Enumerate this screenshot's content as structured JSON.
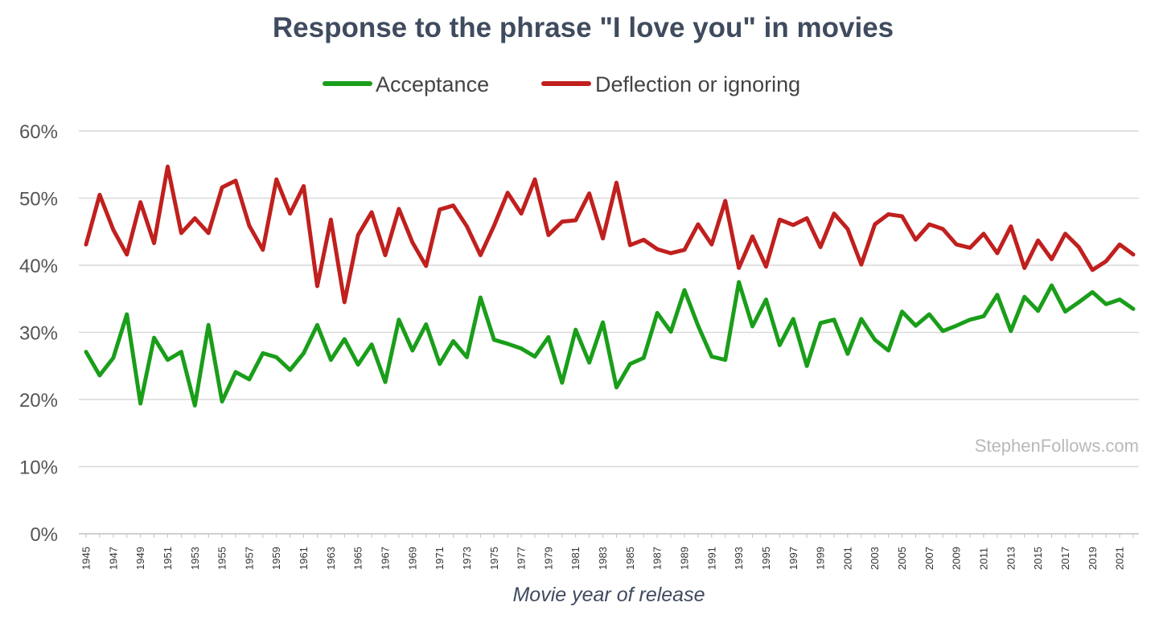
{
  "chart_data": {
    "type": "line",
    "title": "Response to the phrase \"I love you\" in movies",
    "xlabel": "Movie year of release",
    "ylabel": "",
    "ylim": [
      0,
      60
    ],
    "yticks": [
      "0%",
      "10%",
      "20%",
      "30%",
      "40%",
      "50%",
      "60%"
    ],
    "yticks_values": [
      0,
      10,
      20,
      30,
      40,
      50,
      60
    ],
    "x": [
      1945,
      1946,
      1947,
      1948,
      1949,
      1950,
      1951,
      1952,
      1953,
      1954,
      1955,
      1956,
      1957,
      1958,
      1959,
      1960,
      1961,
      1962,
      1963,
      1964,
      1965,
      1966,
      1967,
      1968,
      1969,
      1970,
      1971,
      1972,
      1973,
      1974,
      1975,
      1976,
      1977,
      1978,
      1979,
      1980,
      1981,
      1982,
      1983,
      1984,
      1985,
      1986,
      1987,
      1988,
      1989,
      1990,
      1991,
      1992,
      1993,
      1994,
      1995,
      1996,
      1997,
      1998,
      1999,
      2000,
      2001,
      2002,
      2003,
      2004,
      2005,
      2006,
      2007,
      2008,
      2009,
      2010,
      2011,
      2012,
      2013,
      2014,
      2015,
      2016,
      2017,
      2018,
      2019,
      2020,
      2021,
      2022
    ],
    "xtick_labels": [
      "1945",
      "1947",
      "1949",
      "1951",
      "1953",
      "1955",
      "1957",
      "1959",
      "1961",
      "1963",
      "1965",
      "1967",
      "1969",
      "1971",
      "1973",
      "1975",
      "1977",
      "1979",
      "1981",
      "1983",
      "1985",
      "1987",
      "1989",
      "1991",
      "1993",
      "1995",
      "1997",
      "1999",
      "2001",
      "2003",
      "2005",
      "2007",
      "2009",
      "2011",
      "2013",
      "2015",
      "2017",
      "2019",
      "2021"
    ],
    "legend_position": "top-center",
    "grid": true,
    "series": [
      {
        "name": "Acceptance",
        "color": "#1a9e1a",
        "values": [
          27.1,
          23.6,
          26.2,
          32.7,
          19.4,
          29.2,
          25.9,
          27.1,
          19.1,
          31.1,
          19.7,
          24.1,
          23.0,
          26.9,
          26.3,
          24.4,
          26.9,
          31.1,
          25.9,
          29.0,
          25.2,
          28.2,
          22.6,
          31.9,
          27.3,
          31.2,
          25.3,
          28.7,
          26.3,
          35.2,
          28.9,
          28.3,
          27.6,
          26.4,
          29.3,
          22.5,
          30.4,
          25.5,
          31.5,
          21.8,
          25.3,
          26.2,
          32.9,
          30.1,
          36.3,
          31.0,
          26.4,
          25.9,
          37.5,
          30.9,
          34.9,
          28.1,
          32.0,
          25.0,
          31.4,
          31.9,
          26.8,
          32.0,
          28.9,
          27.3,
          33.1,
          31.0,
          32.7,
          30.2,
          31.0,
          31.9,
          32.4,
          35.6,
          30.2,
          35.3,
          33.2,
          37.0,
          33.1,
          34.5,
          36.0,
          34.2,
          34.9,
          33.5
        ]
      },
      {
        "name": "Deflection or ignoring",
        "color": "#c0201e",
        "values": [
          43.1,
          50.5,
          45.3,
          41.6,
          49.4,
          43.3,
          54.7,
          44.8,
          47.0,
          44.8,
          51.6,
          52.6,
          45.9,
          42.3,
          52.8,
          47.7,
          51.8,
          36.9,
          46.8,
          34.5,
          44.5,
          47.9,
          41.5,
          48.4,
          43.4,
          39.9,
          48.3,
          48.9,
          45.8,
          41.5,
          45.9,
          50.8,
          47.7,
          52.8,
          44.5,
          46.5,
          46.7,
          50.7,
          44.0,
          52.3,
          43.0,
          43.8,
          42.4,
          41.8,
          42.3,
          46.1,
          43.1,
          49.6,
          39.6,
          44.3,
          39.8,
          46.8,
          46.0,
          47.0,
          42.7,
          47.7,
          45.4,
          40.1,
          46.1,
          47.6,
          47.3,
          43.8,
          46.1,
          45.4,
          43.1,
          42.6,
          44.7,
          41.8,
          45.8,
          39.6,
          43.7,
          40.9,
          44.7,
          42.7,
          39.3,
          40.6,
          43.1,
          41.6
        ]
      }
    ]
  },
  "watermark": "StephenFollows.com"
}
